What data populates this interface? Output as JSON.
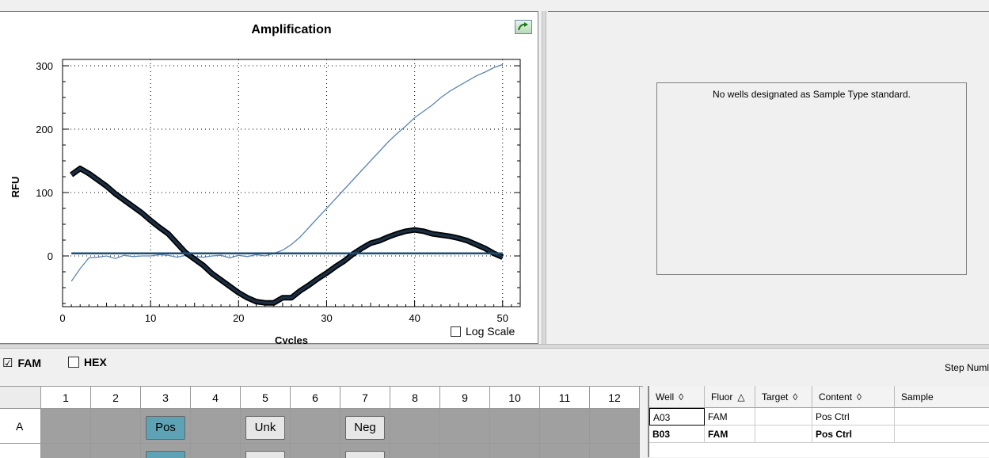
{
  "amplification": {
    "export_icon": "export-arrow-icon",
    "log_scale_label": "Log Scale",
    "log_scale_checked": false
  },
  "chart_data": {
    "type": "line",
    "title": "Amplification",
    "xlabel": "Cycles",
    "ylabel": "RFU",
    "xlim": [
      0,
      52
    ],
    "ylim": [
      -80,
      310
    ],
    "x_ticks": [
      0,
      10,
      20,
      30,
      40,
      50
    ],
    "y_ticks": [
      0,
      100,
      200,
      300
    ],
    "grid": true,
    "series": [
      {
        "color": "#5b86b4",
        "width": "thin",
        "x": [
          1,
          2,
          3,
          4,
          5,
          6,
          7,
          8,
          9,
          10,
          11,
          12,
          13,
          14,
          15,
          16,
          17,
          18,
          19,
          20,
          21,
          22,
          23,
          24,
          25,
          26,
          27,
          28,
          29,
          30,
          31,
          32,
          33,
          34,
          35,
          36,
          37,
          38,
          39,
          40,
          41,
          42,
          43,
          44,
          45,
          46,
          47,
          48,
          49,
          50
        ],
        "y": [
          -40,
          -20,
          -3,
          -2,
          0,
          -4,
          1,
          -1,
          0,
          0,
          2,
          1,
          -2,
          1,
          -1,
          -2,
          0,
          1,
          -3,
          1,
          -1,
          2,
          0,
          4,
          9,
          18,
          30,
          45,
          60,
          75,
          90,
          105,
          120,
          135,
          150,
          165,
          180,
          193,
          205,
          218,
          228,
          238,
          250,
          260,
          268,
          276,
          284,
          290,
          297,
          302
        ]
      },
      {
        "color": "#1b2f44",
        "width": "thick",
        "x": [
          1,
          2,
          3,
          4,
          5,
          6,
          7,
          8,
          9,
          10,
          11,
          12,
          13,
          14,
          15,
          16,
          17,
          18,
          19,
          20,
          21,
          22,
          23,
          24,
          25,
          26,
          27,
          28,
          29,
          30,
          31,
          32,
          33,
          34,
          35,
          36,
          37,
          38,
          39,
          40,
          41,
          42,
          43,
          44,
          45,
          46,
          47,
          48,
          49,
          50
        ],
        "y": [
          128,
          138,
          130,
          120,
          110,
          98,
          88,
          78,
          68,
          56,
          45,
          35,
          20,
          5,
          -5,
          -15,
          -28,
          -38,
          -48,
          -58,
          -66,
          -72,
          -74,
          -74,
          -66,
          -66,
          -55,
          -46,
          -36,
          -27,
          -17,
          -8,
          3,
          12,
          20,
          24,
          30,
          35,
          39,
          41,
          39,
          35,
          33,
          31,
          28,
          24,
          18,
          12,
          4,
          -2
        ]
      },
      {
        "color": "#1f4e79",
        "width": "medium",
        "x": [
          1,
          50
        ],
        "y": [
          4,
          4
        ]
      }
    ]
  },
  "standard_curve": {
    "message": "No wells designated as Sample Type standard."
  },
  "fluor_selector": {
    "items": [
      {
        "label": "FAM",
        "checked": true
      },
      {
        "label": "HEX",
        "checked": false
      }
    ],
    "step_label": "Step Numl"
  },
  "plate": {
    "columns": [
      "1",
      "2",
      "3",
      "4",
      "5",
      "6",
      "7",
      "8",
      "9",
      "10",
      "11",
      "12"
    ],
    "rows": [
      {
        "label": "A",
        "wells": {
          "3": "Pos",
          "5": "Unk",
          "7": "Neg"
        }
      }
    ]
  },
  "well_table": {
    "headers": [
      {
        "label": "Well",
        "sort_icon": "◊"
      },
      {
        "label": "Fluor",
        "sort_icon": "△"
      },
      {
        "label": "Target",
        "sort_icon": "◊"
      },
      {
        "label": "Content",
        "sort_icon": "◊"
      },
      {
        "label": "Sample",
        "sort_icon": ""
      }
    ],
    "rows": [
      {
        "well": "A03",
        "fluor": "FAM",
        "target": "",
        "content": "Pos Ctrl",
        "sample": "",
        "bold": false
      },
      {
        "well": "B03",
        "fluor": "FAM",
        "target": "",
        "content": "Pos Ctrl",
        "sample": "",
        "bold": true
      }
    ]
  }
}
